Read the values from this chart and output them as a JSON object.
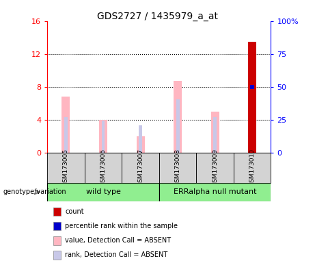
{
  "title": "GDS2727 / 1435979_a_at",
  "samples": [
    "GSM173005",
    "GSM173006",
    "GSM173007",
    "GSM173008",
    "GSM173009",
    "GSM173010"
  ],
  "pink_values": [
    6.8,
    4.0,
    2.0,
    8.7,
    5.0,
    0.0
  ],
  "blue_rank_values": [
    4.3,
    3.9,
    3.3,
    6.5,
    4.3,
    0.0
  ],
  "red_count_values": [
    0.0,
    0.0,
    0.0,
    0.0,
    0.0,
    13.5
  ],
  "blue_dot_right_axis": [
    0,
    0,
    0,
    0,
    0,
    50
  ],
  "ylim_left": [
    0,
    16
  ],
  "ylim_right": [
    0,
    100
  ],
  "yticks_left": [
    0,
    4,
    8,
    12,
    16
  ],
  "yticks_right": [
    0,
    25,
    50,
    75,
    100
  ],
  "yticklabels_left": [
    "0",
    "4",
    "8",
    "12",
    "16"
  ],
  "yticklabels_right": [
    "0",
    "25",
    "50",
    "75",
    "100%"
  ],
  "legend_items": [
    {
      "label": "count",
      "color": "#cc0000"
    },
    {
      "label": "percentile rank within the sample",
      "color": "#0000cc"
    },
    {
      "label": "value, Detection Call = ABSENT",
      "color": "#ffb6c1"
    },
    {
      "label": "rank, Detection Call = ABSENT",
      "color": "#c8c8e8"
    }
  ],
  "pink_color": "#ffb6c1",
  "blue_rank_color": "#c8c8e8",
  "red_color": "#cc0000",
  "blue_dot_color": "#0000cc",
  "tick_fontsize": 8,
  "title_fontsize": 10,
  "bg_plot": "#ffffff",
  "bg_sample_boxes": "#d3d3d3",
  "group_box_color": "#90ee90",
  "wt_label": "wild type",
  "erm_label": "ERRalpha null mutant",
  "genotype_label": "genotype/variation"
}
